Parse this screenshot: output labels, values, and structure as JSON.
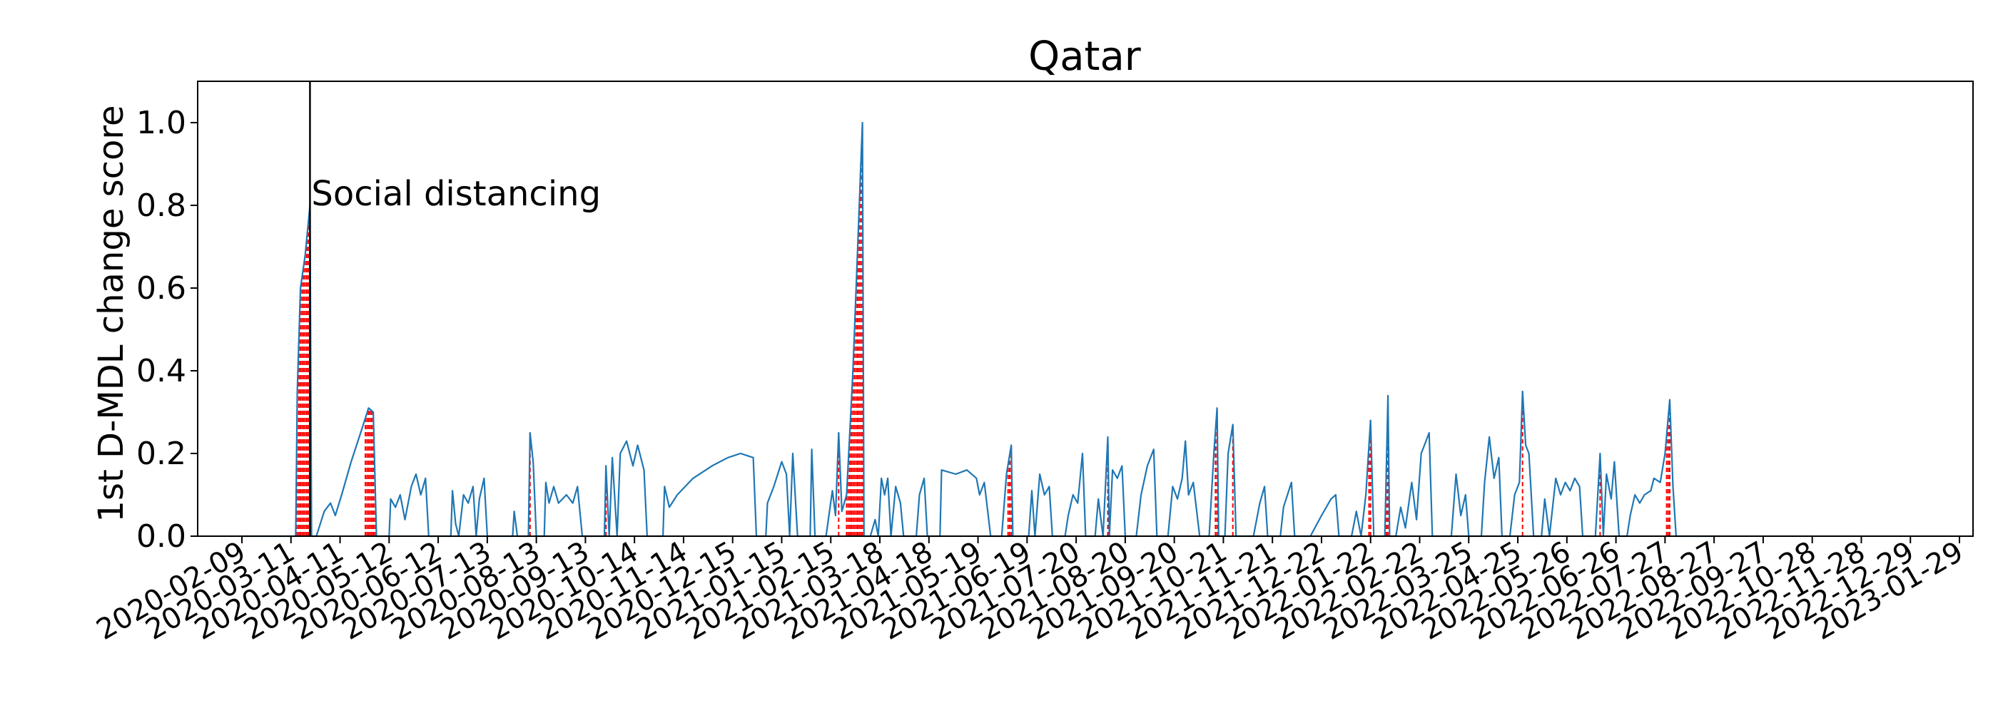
{
  "chart_data": {
    "type": "line",
    "title": "Qatar",
    "xlabel": "",
    "ylabel": "1st D-MDL change score",
    "ylim": [
      0,
      1.1
    ],
    "y_ticks": [
      "0.0",
      "0.2",
      "0.4",
      "0.6",
      "0.8",
      "1.0"
    ],
    "x_ticks": [
      "2020-02-09",
      "2020-03-11",
      "2020-04-11",
      "2020-05-12",
      "2020-06-12",
      "2020-07-13",
      "2020-08-13",
      "2020-09-13",
      "2020-10-14",
      "2020-11-14",
      "2020-12-15",
      "2021-01-15",
      "2021-02-15",
      "2021-03-18",
      "2021-04-18",
      "2021-05-19",
      "2021-06-19",
      "2021-07-20",
      "2021-08-20",
      "2021-09-20",
      "2021-10-21",
      "2021-11-21",
      "2021-12-22",
      "2022-01-22",
      "2022-02-22",
      "2022-03-25",
      "2022-04-25",
      "2022-05-26",
      "2022-06-26",
      "2022-07-27",
      "2022-08-27",
      "2022-09-27",
      "2022-10-28",
      "2022-11-28",
      "2022-12-29",
      "2023-01-29"
    ],
    "x_start": "2020-02-09",
    "x_end": "2023-01-29",
    "grid": false,
    "annotation": {
      "label": "Social distancing",
      "date": "2020-03-23"
    },
    "series": [
      {
        "color": "#1f77b4",
        "points": [
          [
            "2020-02-09",
            0
          ],
          [
            "2020-03-14",
            0
          ],
          [
            "2020-03-15",
            0.35
          ],
          [
            "2020-03-17",
            0.6
          ],
          [
            "2020-03-20",
            0.68
          ],
          [
            "2020-03-23",
            0.8
          ],
          [
            "2020-03-24",
            0
          ],
          [
            "2020-03-27",
            0
          ],
          [
            "2020-04-01",
            0.06
          ],
          [
            "2020-04-05",
            0.08
          ],
          [
            "2020-04-08",
            0.05
          ],
          [
            "2020-04-12",
            0.1
          ],
          [
            "2020-04-18",
            0.18
          ],
          [
            "2020-04-24",
            0.25
          ],
          [
            "2020-04-29",
            0.31
          ],
          [
            "2020-05-02",
            0.3
          ],
          [
            "2020-05-04",
            0
          ],
          [
            "2020-05-12",
            0
          ],
          [
            "2020-05-13",
            0.09
          ],
          [
            "2020-05-16",
            0.07
          ],
          [
            "2020-05-19",
            0.1
          ],
          [
            "2020-05-22",
            0.04
          ],
          [
            "2020-05-26",
            0.12
          ],
          [
            "2020-05-29",
            0.15
          ],
          [
            "2020-06-01",
            0.1
          ],
          [
            "2020-06-04",
            0.14
          ],
          [
            "2020-06-06",
            0
          ],
          [
            "2020-06-20",
            0
          ],
          [
            "2020-06-21",
            0.11
          ],
          [
            "2020-06-23",
            0.03
          ],
          [
            "2020-06-25",
            0
          ],
          [
            "2020-06-28",
            0.1
          ],
          [
            "2020-07-01",
            0.08
          ],
          [
            "2020-07-04",
            0.12
          ],
          [
            "2020-07-06",
            0
          ],
          [
            "2020-07-08",
            0.09
          ],
          [
            "2020-07-11",
            0.14
          ],
          [
            "2020-07-13",
            0
          ],
          [
            "2020-07-29",
            0
          ],
          [
            "2020-07-30",
            0.06
          ],
          [
            "2020-08-01",
            0
          ],
          [
            "2020-08-08",
            0
          ],
          [
            "2020-08-09",
            0.25
          ],
          [
            "2020-08-11",
            0.18
          ],
          [
            "2020-08-13",
            0
          ],
          [
            "2020-08-18",
            0
          ],
          [
            "2020-08-19",
            0.13
          ],
          [
            "2020-08-21",
            0.08
          ],
          [
            "2020-08-24",
            0.12
          ],
          [
            "2020-08-27",
            0.08
          ],
          [
            "2020-09-01",
            0.1
          ],
          [
            "2020-09-05",
            0.08
          ],
          [
            "2020-09-08",
            0.12
          ],
          [
            "2020-09-11",
            0
          ],
          [
            "2020-09-25",
            0
          ],
          [
            "2020-09-26",
            0.17
          ],
          [
            "2020-09-28",
            0
          ],
          [
            "2020-09-30",
            0.19
          ],
          [
            "2020-10-03",
            0
          ],
          [
            "2020-10-05",
            0.2
          ],
          [
            "2020-10-09",
            0.23
          ],
          [
            "2020-10-13",
            0.17
          ],
          [
            "2020-10-16",
            0.22
          ],
          [
            "2020-10-20",
            0.16
          ],
          [
            "2020-10-22",
            0
          ],
          [
            "2020-11-01",
            0
          ],
          [
            "2020-11-02",
            0.12
          ],
          [
            "2020-11-05",
            0.07
          ],
          [
            "2020-11-10",
            0.1
          ],
          [
            "2020-11-20",
            0.14
          ],
          [
            "2020-12-02",
            0.17
          ],
          [
            "2020-12-12",
            0.19
          ],
          [
            "2020-12-20",
            0.2
          ],
          [
            "2020-12-28",
            0.19
          ],
          [
            "2020-12-30",
            0
          ],
          [
            "2021-01-05",
            0
          ],
          [
            "2021-01-06",
            0.08
          ],
          [
            "2021-01-10",
            0.12
          ],
          [
            "2021-01-15",
            0.18
          ],
          [
            "2021-01-18",
            0.15
          ],
          [
            "2021-01-20",
            0
          ],
          [
            "2021-01-22",
            0.2
          ],
          [
            "2021-01-25",
            0
          ],
          [
            "2021-02-02",
            0
          ],
          [
            "2021-02-03",
            0.21
          ],
          [
            "2021-02-05",
            0
          ],
          [
            "2021-02-12",
            0
          ],
          [
            "2021-02-16",
            0.11
          ],
          [
            "2021-02-18",
            0.05
          ],
          [
            "2021-02-20",
            0.25
          ],
          [
            "2021-02-22",
            0.06
          ],
          [
            "2021-02-25",
            0.1
          ],
          [
            "2021-02-27",
            0.25
          ],
          [
            "2021-03-01",
            0.4
          ],
          [
            "2021-03-04",
            0.7
          ],
          [
            "2021-03-07",
            1.0
          ],
          [
            "2021-03-08",
            0
          ],
          [
            "2021-03-12",
            0
          ],
          [
            "2021-03-15",
            0.04
          ],
          [
            "2021-03-17",
            0
          ],
          [
            "2021-03-19",
            0.14
          ],
          [
            "2021-03-21",
            0.1
          ],
          [
            "2021-03-23",
            0.14
          ],
          [
            "2021-03-25",
            0
          ],
          [
            "2021-03-28",
            0.12
          ],
          [
            "2021-03-31",
            0.08
          ],
          [
            "2021-04-02",
            0
          ],
          [
            "2021-04-10",
            0
          ],
          [
            "2021-04-12",
            0.1
          ],
          [
            "2021-04-15",
            0.14
          ],
          [
            "2021-04-17",
            0
          ],
          [
            "2021-04-25",
            0
          ],
          [
            "2021-04-26",
            0.16
          ],
          [
            "2021-05-05",
            0.15
          ],
          [
            "2021-05-12",
            0.16
          ],
          [
            "2021-05-18",
            0.14
          ],
          [
            "2021-05-20",
            0.1
          ],
          [
            "2021-05-23",
            0.13
          ],
          [
            "2021-05-27",
            0
          ],
          [
            "2021-06-03",
            0
          ],
          [
            "2021-06-06",
            0.15
          ],
          [
            "2021-06-09",
            0.22
          ],
          [
            "2021-06-10",
            0
          ],
          [
            "2021-06-20",
            0
          ],
          [
            "2021-06-22",
            0.11
          ],
          [
            "2021-06-24",
            0
          ],
          [
            "2021-06-27",
            0.15
          ],
          [
            "2021-06-30",
            0.1
          ],
          [
            "2021-07-03",
            0.12
          ],
          [
            "2021-07-05",
            0
          ],
          [
            "2021-07-13",
            0
          ],
          [
            "2021-07-15",
            0.05
          ],
          [
            "2021-07-18",
            0.1
          ],
          [
            "2021-07-21",
            0.08
          ],
          [
            "2021-07-24",
            0.2
          ],
          [
            "2021-07-26",
            0
          ],
          [
            "2021-08-01",
            0
          ],
          [
            "2021-08-03",
            0.09
          ],
          [
            "2021-08-06",
            0
          ],
          [
            "2021-08-09",
            0.24
          ],
          [
            "2021-08-10",
            0
          ],
          [
            "2021-08-12",
            0.16
          ],
          [
            "2021-08-15",
            0.14
          ],
          [
            "2021-08-18",
            0.17
          ],
          [
            "2021-08-20",
            0
          ],
          [
            "2021-08-27",
            0
          ],
          [
            "2021-08-30",
            0.1
          ],
          [
            "2021-09-03",
            0.17
          ],
          [
            "2021-09-07",
            0.21
          ],
          [
            "2021-09-09",
            0
          ],
          [
            "2021-09-16",
            0
          ],
          [
            "2021-09-19",
            0.12
          ],
          [
            "2021-09-22",
            0.09
          ],
          [
            "2021-09-25",
            0.14
          ],
          [
            "2021-09-27",
            0.23
          ],
          [
            "2021-09-29",
            0.1
          ],
          [
            "2021-10-02",
            0.13
          ],
          [
            "2021-10-06",
            0
          ],
          [
            "2021-10-12",
            0
          ],
          [
            "2021-10-15",
            0.2
          ],
          [
            "2021-10-17",
            0.31
          ],
          [
            "2021-10-18",
            0
          ],
          [
            "2021-10-22",
            0
          ],
          [
            "2021-10-24",
            0.2
          ],
          [
            "2021-10-27",
            0.27
          ],
          [
            "2021-10-29",
            0
          ],
          [
            "2021-11-09",
            0
          ],
          [
            "2021-11-13",
            0.08
          ],
          [
            "2021-11-16",
            0.12
          ],
          [
            "2021-11-18",
            0
          ],
          [
            "2021-11-26",
            0
          ],
          [
            "2021-11-28",
            0.07
          ],
          [
            "2021-12-03",
            0.13
          ],
          [
            "2021-12-05",
            0
          ],
          [
            "2021-12-15",
            0
          ],
          [
            "2021-12-22",
            0.05
          ],
          [
            "2021-12-28",
            0.09
          ],
          [
            "2021-12-31",
            0.1
          ],
          [
            "2022-01-02",
            0
          ],
          [
            "2022-01-10",
            0
          ],
          [
            "2022-01-13",
            0.06
          ],
          [
            "2022-01-16",
            0
          ],
          [
            "2022-01-19",
            0.1
          ],
          [
            "2022-01-22",
            0.28
          ],
          [
            "2022-01-24",
            0
          ],
          [
            "2022-01-31",
            0
          ],
          [
            "2022-02-02",
            0.34
          ],
          [
            "2022-02-03",
            0
          ],
          [
            "2022-02-07",
            0
          ],
          [
            "2022-02-10",
            0.07
          ],
          [
            "2022-02-13",
            0.02
          ],
          [
            "2022-02-17",
            0.13
          ],
          [
            "2022-02-20",
            0.04
          ],
          [
            "2022-02-23",
            0.2
          ],
          [
            "2022-02-25",
            0.22
          ],
          [
            "2022-02-28",
            0.25
          ],
          [
            "2022-03-02",
            0
          ],
          [
            "2022-03-14",
            0
          ],
          [
            "2022-03-17",
            0.15
          ],
          [
            "2022-03-20",
            0.05
          ],
          [
            "2022-03-23",
            0.1
          ],
          [
            "2022-03-25",
            0
          ],
          [
            "2022-04-02",
            0
          ],
          [
            "2022-04-04",
            0.13
          ],
          [
            "2022-04-07",
            0.24
          ],
          [
            "2022-04-10",
            0.14
          ],
          [
            "2022-04-13",
            0.19
          ],
          [
            "2022-04-15",
            0
          ],
          [
            "2022-04-20",
            0
          ],
          [
            "2022-04-23",
            0.1
          ],
          [
            "2022-04-26",
            0.13
          ],
          [
            "2022-04-28",
            0.35
          ],
          [
            "2022-04-30",
            0.22
          ],
          [
            "2022-05-02",
            0.2
          ],
          [
            "2022-05-05",
            0
          ],
          [
            "2022-05-10",
            0
          ],
          [
            "2022-05-12",
            0.09
          ],
          [
            "2022-05-15",
            0
          ],
          [
            "2022-05-19",
            0.14
          ],
          [
            "2022-05-22",
            0.1
          ],
          [
            "2022-05-25",
            0.13
          ],
          [
            "2022-05-28",
            0.11
          ],
          [
            "2022-05-31",
            0.14
          ],
          [
            "2022-06-03",
            0.12
          ],
          [
            "2022-06-05",
            0
          ],
          [
            "2022-06-13",
            0
          ],
          [
            "2022-06-16",
            0.2
          ],
          [
            "2022-06-18",
            0
          ],
          [
            "2022-06-20",
            0.15
          ],
          [
            "2022-06-23",
            0.09
          ],
          [
            "2022-06-25",
            0.18
          ],
          [
            "2022-06-28",
            0
          ],
          [
            "2022-07-03",
            0
          ],
          [
            "2022-07-05",
            0.05
          ],
          [
            "2022-07-08",
            0.1
          ],
          [
            "2022-07-11",
            0.08
          ],
          [
            "2022-07-14",
            0.1
          ],
          [
            "2022-07-18",
            0.11
          ],
          [
            "2022-07-20",
            0.14
          ],
          [
            "2022-07-24",
            0.13
          ],
          [
            "2022-07-27",
            0.2
          ],
          [
            "2022-07-30",
            0.33
          ],
          [
            "2022-08-01",
            0.12
          ],
          [
            "2022-08-03",
            0
          ],
          [
            "2022-08-31",
            0
          ]
        ]
      }
    ],
    "detections": [
      {
        "start": "2020-03-14",
        "end": "2020-03-22"
      },
      {
        "start": "2020-04-27",
        "end": "2020-05-03"
      },
      {
        "start": "2020-08-09",
        "end": "2020-08-09"
      },
      {
        "start": "2020-09-26",
        "end": "2020-09-26"
      },
      {
        "start": "2021-02-25",
        "end": "2021-03-07"
      },
      {
        "start": "2021-02-20",
        "end": "2021-02-20"
      },
      {
        "start": "2021-06-07",
        "end": "2021-06-09"
      },
      {
        "start": "2021-08-09",
        "end": "2021-08-09"
      },
      {
        "start": "2021-10-16",
        "end": "2021-10-17"
      },
      {
        "start": "2021-10-27",
        "end": "2021-10-27"
      },
      {
        "start": "2022-01-21",
        "end": "2022-01-22"
      },
      {
        "start": "2022-02-01",
        "end": "2022-02-02"
      },
      {
        "start": "2022-04-28",
        "end": "2022-04-28"
      },
      {
        "start": "2022-06-16",
        "end": "2022-06-16"
      },
      {
        "start": "2022-07-28",
        "end": "2022-07-30"
      }
    ],
    "detection_color": "#ff0000"
  }
}
